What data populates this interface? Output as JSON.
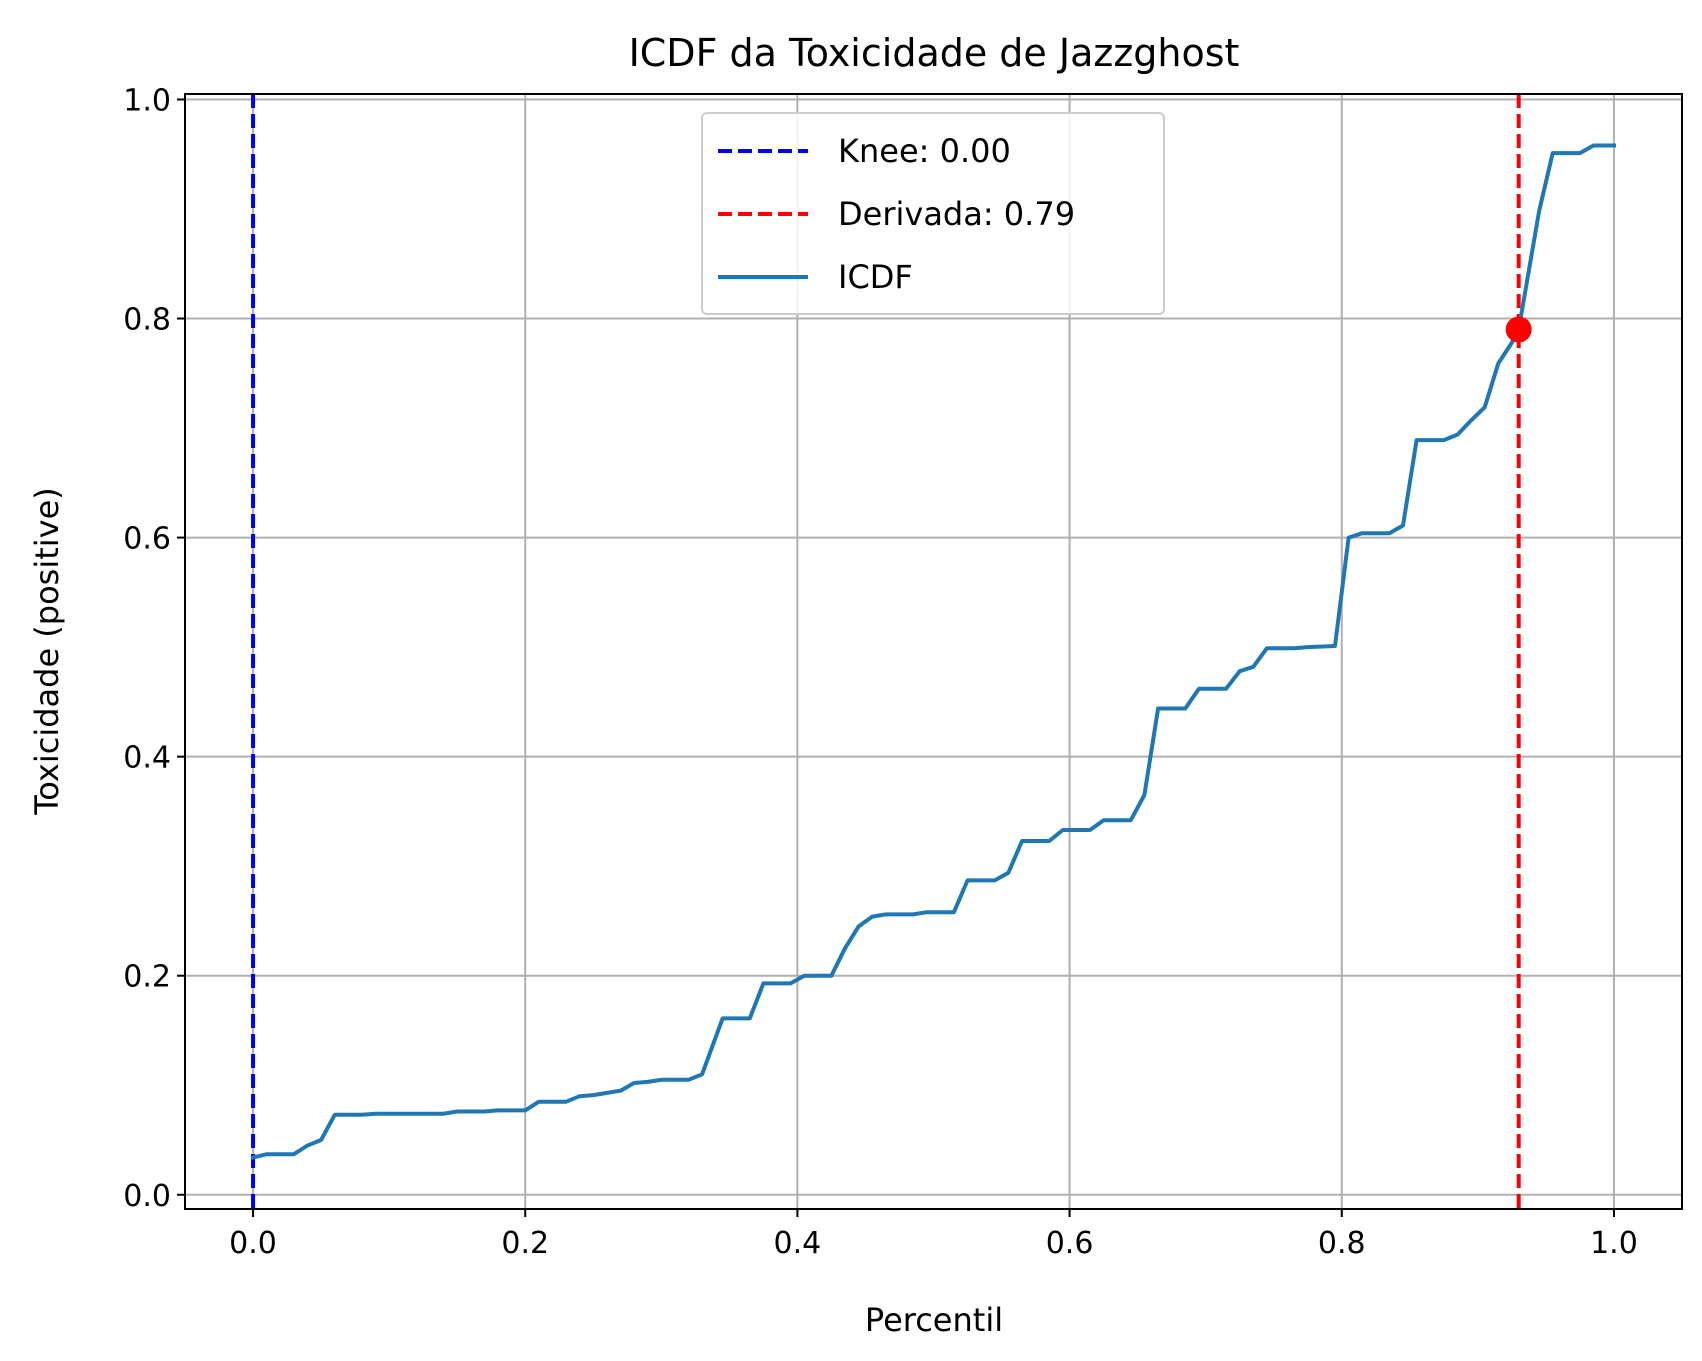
{
  "chart_data": {
    "type": "line",
    "title": "ICDF da Toxicidade de Jazzghost",
    "xlabel": "Percentil",
    "ylabel": "Toxicidade (positive)",
    "xlim": [
      -0.05,
      1.05
    ],
    "ylim": [
      -0.013,
      1.005
    ],
    "xticks": [
      0.0,
      0.2,
      0.4,
      0.6,
      0.8,
      1.0
    ],
    "xtick_labels": [
      "0.0",
      "0.2",
      "0.4",
      "0.6",
      "0.8",
      "1.0"
    ],
    "yticks": [
      0.0,
      0.2,
      0.4,
      0.6,
      0.8,
      1.0
    ],
    "ytick_labels": [
      "0.0",
      "0.2",
      "0.4",
      "0.6",
      "0.8",
      "1.0"
    ],
    "grid": true,
    "legend_position": "top-center",
    "series": [
      {
        "name": "ICDF",
        "color": "#1f77b4",
        "style": "solid",
        "x": [
          0.0,
          0.01,
          0.02,
          0.03,
          0.04,
          0.05,
          0.06,
          0.07,
          0.08,
          0.09,
          0.1,
          0.12,
          0.14,
          0.15,
          0.17,
          0.18,
          0.2,
          0.21,
          0.23,
          0.24,
          0.25,
          0.26,
          0.27,
          0.28,
          0.29,
          0.3,
          0.31,
          0.32,
          0.33,
          0.345,
          0.365,
          0.375,
          0.395,
          0.405,
          0.425,
          0.435,
          0.445,
          0.455,
          0.465,
          0.475,
          0.485,
          0.495,
          0.505,
          0.515,
          0.525,
          0.535,
          0.545,
          0.555,
          0.565,
          0.575,
          0.585,
          0.595,
          0.605,
          0.615,
          0.625,
          0.635,
          0.645,
          0.655,
          0.665,
          0.685,
          0.695,
          0.715,
          0.725,
          0.735,
          0.745,
          0.765,
          0.775,
          0.795,
          0.805,
          0.815,
          0.835,
          0.845,
          0.855,
          0.875,
          0.885,
          0.895,
          0.905,
          0.915,
          0.925,
          0.93,
          0.945,
          0.955,
          0.975,
          0.985,
          1.0
        ],
        "y": [
          0.034,
          0.037,
          0.037,
          0.037,
          0.045,
          0.05,
          0.073,
          0.073,
          0.073,
          0.074,
          0.074,
          0.074,
          0.074,
          0.076,
          0.076,
          0.077,
          0.077,
          0.085,
          0.085,
          0.09,
          0.091,
          0.093,
          0.095,
          0.102,
          0.103,
          0.105,
          0.105,
          0.105,
          0.11,
          0.161,
          0.161,
          0.193,
          0.193,
          0.2,
          0.2,
          0.225,
          0.245,
          0.254,
          0.256,
          0.256,
          0.256,
          0.258,
          0.258,
          0.258,
          0.287,
          0.287,
          0.287,
          0.294,
          0.323,
          0.323,
          0.323,
          0.333,
          0.333,
          0.333,
          0.342,
          0.342,
          0.342,
          0.365,
          0.444,
          0.444,
          0.462,
          0.462,
          0.478,
          0.482,
          0.499,
          0.499,
          0.5,
          0.501,
          0.6,
          0.604,
          0.604,
          0.611,
          0.689,
          0.689,
          0.694,
          0.707,
          0.719,
          0.759,
          0.778,
          0.79,
          0.898,
          0.951,
          0.951,
          0.958,
          0.958
        ]
      }
    ],
    "reference_lines": [
      {
        "name": "Knee: 0.00",
        "x": 0.0,
        "color": "#0000ff",
        "style": "dashed"
      },
      {
        "name": "Derivada: 0.79",
        "x": 0.93,
        "color": "#ff0000",
        "style": "dashed"
      }
    ],
    "marker": {
      "x": 0.93,
      "y": 0.79,
      "color": "#ff0000"
    }
  }
}
